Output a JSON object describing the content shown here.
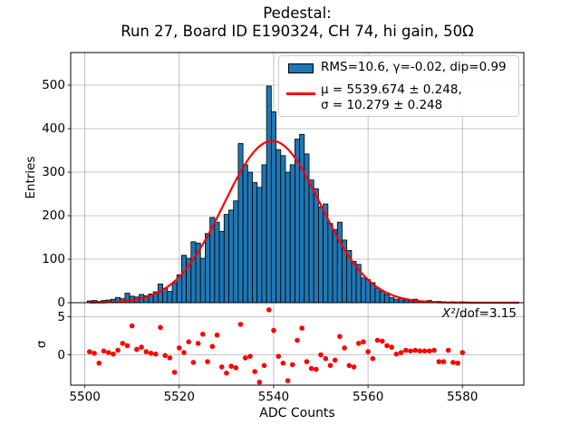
{
  "figure": {
    "title_line1": "Pedestal:",
    "title_line2": "Run 27, Board ID E190324, CH 74, hi gain, 50Ω"
  },
  "axes": {
    "xlabel": "ADC Counts",
    "x_ticks": [
      5500,
      5520,
      5540,
      5560,
      5580
    ],
    "main": {
      "ylabel": "Entries",
      "y_ticks": [
        0,
        100,
        200,
        300,
        400,
        500
      ]
    },
    "residual": {
      "ylabel": "σ",
      "y_ticks": [
        5,
        0
      ],
      "annotation_symbol": "X²",
      "annotation_rest": "/dof=3.15"
    }
  },
  "legend": {
    "hist_label": "RMS=10.6, γ=-0.02, dip=0.99",
    "fit_label_line1": "μ = 5539.674 ± 0.248,",
    "fit_label_line2": "σ = 10.279 ± 0.248"
  },
  "colors": {
    "hist_fill": "#1f77b4",
    "hist_edge": "#000000",
    "fit_line": "#ff0000",
    "residual_marker": "#ff0000",
    "grid": "#b0b0b0",
    "spine": "#000000"
  },
  "chart_data": {
    "type": "bar",
    "subtype": "histogram_with_gaussian_fit_and_residuals",
    "title": "Pedestal:\nRun 27, Board ID E190324, CH 74, hi gain, 50Ω",
    "xlabel": "ADC Counts",
    "ylabel_main": "Entries",
    "ylabel_residual": "σ",
    "xlim": [
      5497,
      5593
    ],
    "ylim_main": [
      0,
      575
    ],
    "ylim_residual": [
      -4.0,
      6.85
    ],
    "grid": true,
    "legend_position": "upper right",
    "bin_centers_start": 5501,
    "bin_width": 1,
    "counts": [
      4,
      5,
      3,
      5,
      6,
      8,
      12,
      9,
      22,
      15,
      13,
      19,
      16,
      20,
      25,
      43,
      33,
      26,
      46,
      64,
      109,
      102,
      140,
      137,
      102,
      159,
      196,
      185,
      164,
      203,
      213,
      234,
      366,
      317,
      300,
      276,
      265,
      317,
      498,
      439,
      352,
      338,
      300,
      317,
      376,
      387,
      342,
      282,
      262,
      220,
      227,
      182,
      168,
      185,
      144,
      120,
      95,
      88,
      57,
      53,
      46,
      33,
      26,
      19,
      12,
      8,
      10,
      6,
      5,
      8,
      4,
      3,
      5,
      2,
      3,
      2,
      1,
      2,
      1,
      2
    ],
    "fit": {
      "shape": "gaussian",
      "mu": 5539.674,
      "mu_err": 0.248,
      "sigma": 10.279,
      "sigma_err": 0.248,
      "amplitude": 372,
      "rms": 10.6,
      "gamma": -0.02,
      "dip": 0.99,
      "chi2_per_dof": 3.15
    },
    "residuals_sigma": [
      0.4,
      0.2,
      -1.1,
      0.5,
      0.3,
      0.1,
      0.6,
      1.5,
      1.2,
      3.8,
      0.7,
      1.0,
      0.4,
      0.2,
      0.1,
      3.6,
      -0.1,
      -0.4,
      -2.3,
      0.9,
      0.3,
      1.7,
      -1.0,
      1.5,
      2.7,
      -0.9,
      1.1,
      2.6,
      -1.6,
      -2.4,
      -1.5,
      -1.7,
      4.0,
      -0.4,
      -0.2,
      -2.2,
      -3.6,
      -1.4,
      5.9,
      3.2,
      -0.2,
      -1.1,
      -3.4,
      -1.3,
      1.9,
      3.5,
      -0.9,
      -1.8,
      -1.9,
      0.0,
      -0.5,
      -1.4,
      -0.7,
      2.4,
      0.9,
      -1.4,
      -1.6,
      1.5,
      1.7,
      0.4,
      -0.5,
      1.9,
      1.8,
      1.2,
      1.0,
      0.1,
      0.3,
      0.6,
      0.5,
      0.6,
      0.5,
      0.5,
      0.5,
      0.6,
      -0.9,
      -0.9,
      0.6,
      -1.0,
      -1.1,
      0.3
    ]
  }
}
